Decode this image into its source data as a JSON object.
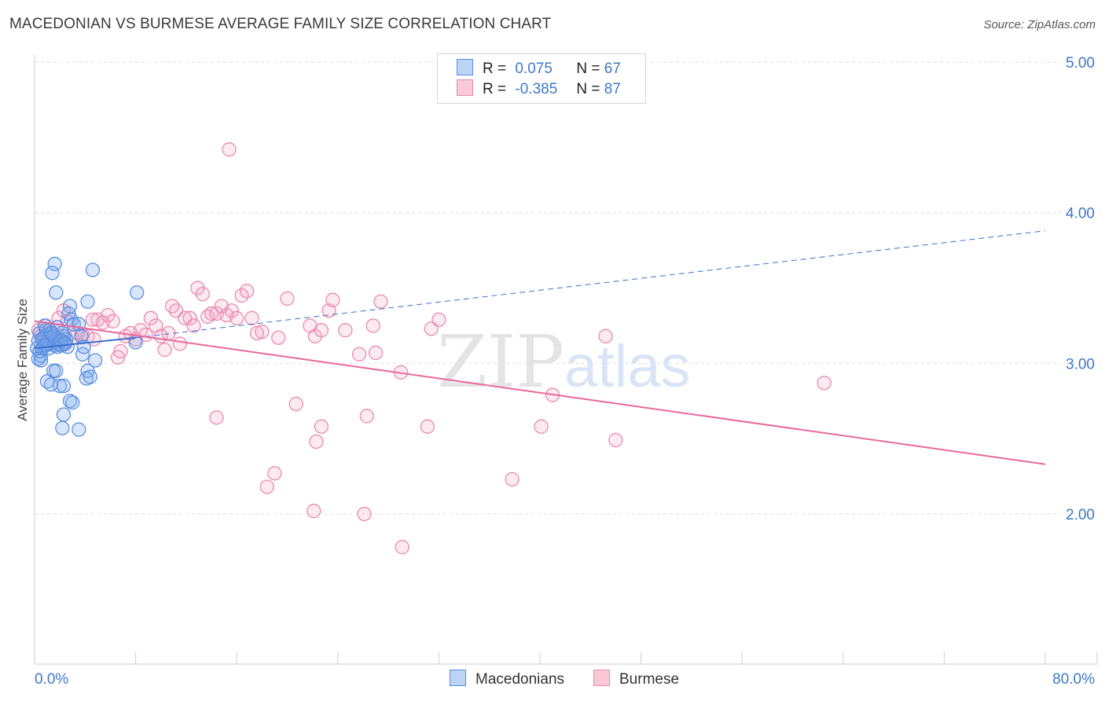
{
  "title": "MACEDONIAN VS BURMESE AVERAGE FAMILY SIZE CORRELATION CHART",
  "source": "Source: ZipAtlas.com",
  "watermark": {
    "part1": "ZIP",
    "part2": "atlas"
  },
  "legend": [
    {
      "r_label": "R =",
      "r_value": "0.075",
      "n_label": "N =",
      "n_value": "67"
    },
    {
      "r_label": "R =",
      "r_value": "-0.385",
      "n_label": "N =",
      "n_value": "87"
    }
  ],
  "colors": {
    "blue": "#5b8fe0",
    "blue_fill": "rgba(120,165,235,0.28)",
    "blue_line": "#3a6fd0",
    "pink": "#ea8ab0",
    "pink_fill": "rgba(240,160,190,0.22)",
    "pink_line": "#e8699a",
    "tick_text": "#3d78c9",
    "grid": "#dddddd"
  },
  "chart_data": {
    "type": "scatter",
    "title": "MACEDONIAN VS BURMESE AVERAGE FAMILY SIZE CORRELATION CHART",
    "xlabel": "",
    "ylabel": "Average Family Size",
    "xlim": [
      0,
      80
    ],
    "ylim": [
      1.0,
      5.1
    ],
    "x_tick_labels": [
      "0.0%",
      "80.0%"
    ],
    "y_ticks": [
      2.0,
      3.0,
      4.0,
      5.0
    ],
    "y_tick_labels": [
      "2.00",
      "3.00",
      "4.00",
      "5.00"
    ],
    "series": [
      {
        "name": "Macedonians",
        "r": 0.075,
        "n": 67,
        "trend": {
          "x": [
            0,
            8
          ],
          "y": [
            3.1,
            3.17
          ]
        },
        "trend_extended": {
          "x": [
            8,
            80
          ],
          "y": [
            3.17,
            3.88
          ]
        },
        "points": [
          [
            0.2,
            3.1
          ],
          [
            0.3,
            3.15
          ],
          [
            0.4,
            3.2
          ],
          [
            0.5,
            3.05
          ],
          [
            0.6,
            3.1
          ],
          [
            0.7,
            3.12
          ],
          [
            0.8,
            3.18
          ],
          [
            0.9,
            3.22
          ],
          [
            1.0,
            3.15
          ],
          [
            1.1,
            3.1
          ],
          [
            1.2,
            3.13
          ],
          [
            1.3,
            3.17
          ],
          [
            1.4,
            3.2
          ],
          [
            1.5,
            3.14
          ],
          [
            1.6,
            3.12
          ],
          [
            1.7,
            3.16
          ],
          [
            1.8,
            3.11
          ],
          [
            1.9,
            3.13
          ],
          [
            2.0,
            3.15
          ],
          [
            2.1,
            3.12
          ],
          [
            2.2,
            3.2
          ],
          [
            2.3,
            3.18
          ],
          [
            2.4,
            3.14
          ],
          [
            2.5,
            3.16
          ],
          [
            2.6,
            3.11
          ],
          [
            0.4,
            3.08
          ],
          [
            0.6,
            3.16
          ],
          [
            0.9,
            3.12
          ],
          [
            1.2,
            3.22
          ],
          [
            1.5,
            3.18
          ],
          [
            1.8,
            3.24
          ],
          [
            2.1,
            3.15
          ],
          [
            2.4,
            3.13
          ],
          [
            1.4,
            3.6
          ],
          [
            1.6,
            3.66
          ],
          [
            1.7,
            3.47
          ],
          [
            4.6,
            3.62
          ],
          [
            8.1,
            3.47
          ],
          [
            2.8,
            3.38
          ],
          [
            4.2,
            3.41
          ],
          [
            2.7,
            3.33
          ],
          [
            2.9,
            3.29
          ],
          [
            3.1,
            3.26
          ],
          [
            3.5,
            3.26
          ],
          [
            3.7,
            3.18
          ],
          [
            1.3,
            3.2
          ],
          [
            0.8,
            3.25
          ],
          [
            1.0,
            2.88
          ],
          [
            1.3,
            2.86
          ],
          [
            1.5,
            2.95
          ],
          [
            1.7,
            2.95
          ],
          [
            2.0,
            2.85
          ],
          [
            2.3,
            2.85
          ],
          [
            2.8,
            2.75
          ],
          [
            3.0,
            2.74
          ],
          [
            2.3,
            2.66
          ],
          [
            2.2,
            2.57
          ],
          [
            3.5,
            2.56
          ],
          [
            3.8,
            3.06
          ],
          [
            3.9,
            3.11
          ],
          [
            4.2,
            2.95
          ],
          [
            4.1,
            2.9
          ],
          [
            4.4,
            2.91
          ],
          [
            4.8,
            3.02
          ],
          [
            8.0,
            3.14
          ],
          [
            0.3,
            3.03
          ],
          [
            0.5,
            3.02
          ]
        ]
      },
      {
        "name": "Burmese",
        "r": -0.385,
        "n": 87,
        "trend": {
          "x": [
            0,
            80
          ],
          "y": [
            3.28,
            2.33
          ]
        },
        "points": [
          [
            0.3,
            3.22
          ],
          [
            0.5,
            3.18
          ],
          [
            0.7,
            3.15
          ],
          [
            0.9,
            3.25
          ],
          [
            1.1,
            3.2
          ],
          [
            1.3,
            3.17
          ],
          [
            1.5,
            3.22
          ],
          [
            1.8,
            3.16
          ],
          [
            2.2,
            3.12
          ],
          [
            2.6,
            3.28
          ],
          [
            3.0,
            3.17
          ],
          [
            3.4,
            3.2
          ],
          [
            3.8,
            3.19
          ],
          [
            4.2,
            3.18
          ],
          [
            4.6,
            3.29
          ],
          [
            5.0,
            3.29
          ],
          [
            5.4,
            3.27
          ],
          [
            5.8,
            3.32
          ],
          [
            6.2,
            3.28
          ],
          [
            6.6,
            3.04
          ],
          [
            6.8,
            3.08
          ],
          [
            7.2,
            3.18
          ],
          [
            7.6,
            3.2
          ],
          [
            8.0,
            3.16
          ],
          [
            8.4,
            3.22
          ],
          [
            8.8,
            3.19
          ],
          [
            9.2,
            3.3
          ],
          [
            9.6,
            3.25
          ],
          [
            10.0,
            3.18
          ],
          [
            10.3,
            3.09
          ],
          [
            10.6,
            3.2
          ],
          [
            10.9,
            3.38
          ],
          [
            11.2,
            3.35
          ],
          [
            11.5,
            3.13
          ],
          [
            11.9,
            3.3
          ],
          [
            12.3,
            3.3
          ],
          [
            12.6,
            3.25
          ],
          [
            12.9,
            3.5
          ],
          [
            13.3,
            3.46
          ],
          [
            13.7,
            3.31
          ],
          [
            14.0,
            3.33
          ],
          [
            14.4,
            3.33
          ],
          [
            14.8,
            3.38
          ],
          [
            15.2,
            3.32
          ],
          [
            15.6,
            3.35
          ],
          [
            16.0,
            3.3
          ],
          [
            16.4,
            3.45
          ],
          [
            16.8,
            3.48
          ],
          [
            17.2,
            3.3
          ],
          [
            17.6,
            3.2
          ],
          [
            18.0,
            3.21
          ],
          [
            19.3,
            3.17
          ],
          [
            20.0,
            3.43
          ],
          [
            21.8,
            3.25
          ],
          [
            22.2,
            3.18
          ],
          [
            22.7,
            3.22
          ],
          [
            23.3,
            3.35
          ],
          [
            23.6,
            3.42
          ],
          [
            24.6,
            3.22
          ],
          [
            25.7,
            3.06
          ],
          [
            26.8,
            3.25
          ],
          [
            27.4,
            3.41
          ],
          [
            27.0,
            3.07
          ],
          [
            29.0,
            2.94
          ],
          [
            31.4,
            3.23
          ],
          [
            32.0,
            3.29
          ],
          [
            41.0,
            2.79
          ],
          [
            45.2,
            3.18
          ],
          [
            62.5,
            2.87
          ],
          [
            15.4,
            4.42
          ],
          [
            14.4,
            2.64
          ],
          [
            20.7,
            2.73
          ],
          [
            22.7,
            2.58
          ],
          [
            22.3,
            2.48
          ],
          [
            26.3,
            2.65
          ],
          [
            31.1,
            2.58
          ],
          [
            40.1,
            2.58
          ],
          [
            46.0,
            2.49
          ],
          [
            19.0,
            2.27
          ],
          [
            18.4,
            2.18
          ],
          [
            22.1,
            2.02
          ],
          [
            26.1,
            2.0
          ],
          [
            29.1,
            1.78
          ],
          [
            37.8,
            2.23
          ],
          [
            1.9,
            3.3
          ],
          [
            2.3,
            3.35
          ],
          [
            4.7,
            3.16
          ]
        ]
      }
    ]
  },
  "bottom_legend": [
    "Macedonians",
    "Burmese"
  ]
}
